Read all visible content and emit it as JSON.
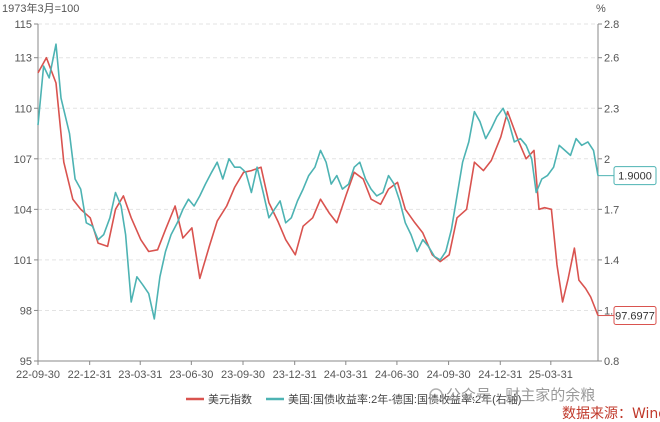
{
  "chart_data": {
    "type": "line",
    "left_unit": "1973年3月=100",
    "right_unit": "%",
    "x_ticks": [
      "22-09-30",
      "22-12-31",
      "23-03-31",
      "23-06-30",
      "23-09-30",
      "23-12-31",
      "24-03-31",
      "24-06-30",
      "24-09-30",
      "24-12-31",
      "25-03-31"
    ],
    "x_range": [
      "2022-09-30",
      "2025-06-23"
    ],
    "y_left": {
      "range": [
        95,
        115
      ],
      "ticks": [
        "95",
        "98",
        "101",
        "104",
        "107",
        "110",
        "113",
        "115"
      ]
    },
    "y_right": {
      "range": [
        0.8,
        2.8
      ],
      "ticks": [
        "0.8",
        "1.1",
        "1.4",
        "1.7",
        "2",
        "2.3",
        "2.6",
        "2.8"
      ]
    },
    "grid": true,
    "legend_position": "bottom",
    "series": [
      {
        "name": "美元指数",
        "axis": "left",
        "color": "#d9534f",
        "end_label": "97.6977",
        "points": [
          [
            "2022-09-30",
            112.1
          ],
          [
            "2022-10-15",
            113.0
          ],
          [
            "2022-11-01",
            111.5
          ],
          [
            "2022-11-15",
            106.8
          ],
          [
            "2022-12-01",
            104.6
          ],
          [
            "2022-12-15",
            104.0
          ],
          [
            "2023-01-01",
            103.5
          ],
          [
            "2023-01-15",
            102.0
          ],
          [
            "2023-02-01",
            101.8
          ],
          [
            "2023-02-15",
            104.0
          ],
          [
            "2023-03-01",
            104.8
          ],
          [
            "2023-03-15",
            103.5
          ],
          [
            "2023-04-01",
            102.2
          ],
          [
            "2023-04-15",
            101.5
          ],
          [
            "2023-05-01",
            101.6
          ],
          [
            "2023-05-15",
            102.8
          ],
          [
            "2023-06-01",
            104.2
          ],
          [
            "2023-06-15",
            102.3
          ],
          [
            "2023-07-01",
            102.9
          ],
          [
            "2023-07-15",
            99.9
          ],
          [
            "2023-08-01",
            101.8
          ],
          [
            "2023-08-15",
            103.3
          ],
          [
            "2023-09-01",
            104.2
          ],
          [
            "2023-09-15",
            105.3
          ],
          [
            "2023-10-01",
            106.2
          ],
          [
            "2023-10-15",
            106.3
          ],
          [
            "2023-11-01",
            106.5
          ],
          [
            "2023-11-15",
            104.4
          ],
          [
            "2023-12-01",
            103.3
          ],
          [
            "2023-12-15",
            102.2
          ],
          [
            "2024-01-01",
            101.3
          ],
          [
            "2024-01-15",
            103.0
          ],
          [
            "2024-02-01",
            103.5
          ],
          [
            "2024-02-15",
            104.6
          ],
          [
            "2024-03-01",
            103.8
          ],
          [
            "2024-03-15",
            103.2
          ],
          [
            "2024-04-01",
            104.9
          ],
          [
            "2024-04-15",
            106.2
          ],
          [
            "2024-05-01",
            105.8
          ],
          [
            "2024-05-15",
            104.6
          ],
          [
            "2024-06-01",
            104.3
          ],
          [
            "2024-06-15",
            105.2
          ],
          [
            "2024-07-01",
            105.6
          ],
          [
            "2024-07-15",
            104.0
          ],
          [
            "2024-08-01",
            103.2
          ],
          [
            "2024-08-15",
            102.6
          ],
          [
            "2024-09-01",
            101.3
          ],
          [
            "2024-09-15",
            100.9
          ],
          [
            "2024-10-01",
            101.3
          ],
          [
            "2024-10-15",
            103.5
          ],
          [
            "2024-11-01",
            104.0
          ],
          [
            "2024-11-15",
            106.8
          ],
          [
            "2024-12-01",
            106.3
          ],
          [
            "2024-12-15",
            106.9
          ],
          [
            "2025-01-01",
            108.3
          ],
          [
            "2025-01-13",
            109.8
          ],
          [
            "2025-02-01",
            108.1
          ],
          [
            "2025-02-15",
            107.0
          ],
          [
            "2025-03-01",
            107.5
          ],
          [
            "2025-03-10",
            104.0
          ],
          [
            "2025-03-20",
            104.1
          ],
          [
            "2025-04-01",
            104.0
          ],
          [
            "2025-04-11",
            100.7
          ],
          [
            "2025-04-21",
            98.5
          ],
          [
            "2025-05-01",
            99.9
          ],
          [
            "2025-05-12",
            101.7
          ],
          [
            "2025-05-20",
            99.8
          ],
          [
            "2025-06-01",
            99.3
          ],
          [
            "2025-06-10",
            98.8
          ],
          [
            "2025-06-23",
            97.6977
          ]
        ]
      },
      {
        "name": "美国:国债收益率:2年-德国:国债收益率:2年(右轴)",
        "axis": "right",
        "color": "#4db3b3",
        "end_label": "1.9000",
        "points": [
          [
            "2022-09-30",
            2.2
          ],
          [
            "2022-10-10",
            2.55
          ],
          [
            "2022-10-20",
            2.48
          ],
          [
            "2022-11-01",
            2.68
          ],
          [
            "2022-11-10",
            2.36
          ],
          [
            "2022-11-25",
            2.15
          ],
          [
            "2022-12-05",
            1.88
          ],
          [
            "2022-12-15",
            1.82
          ],
          [
            "2022-12-25",
            1.62
          ],
          [
            "2023-01-05",
            1.6
          ],
          [
            "2023-01-15",
            1.52
          ],
          [
            "2023-01-25",
            1.55
          ],
          [
            "2023-02-05",
            1.65
          ],
          [
            "2023-02-15",
            1.8
          ],
          [
            "2023-02-25",
            1.72
          ],
          [
            "2023-03-05",
            1.55
          ],
          [
            "2023-03-15",
            1.15
          ],
          [
            "2023-03-25",
            1.3
          ],
          [
            "2023-04-05",
            1.25
          ],
          [
            "2023-04-15",
            1.2
          ],
          [
            "2023-04-25",
            1.05
          ],
          [
            "2023-05-05",
            1.3
          ],
          [
            "2023-05-15",
            1.45
          ],
          [
            "2023-05-25",
            1.55
          ],
          [
            "2023-06-05",
            1.62
          ],
          [
            "2023-06-15",
            1.7
          ],
          [
            "2023-06-25",
            1.76
          ],
          [
            "2023-07-05",
            1.72
          ],
          [
            "2023-07-15",
            1.78
          ],
          [
            "2023-07-25",
            1.85
          ],
          [
            "2023-08-05",
            1.92
          ],
          [
            "2023-08-15",
            1.98
          ],
          [
            "2023-08-25",
            1.88
          ],
          [
            "2023-09-05",
            2.0
          ],
          [
            "2023-09-15",
            1.95
          ],
          [
            "2023-09-25",
            1.95
          ],
          [
            "2023-10-05",
            1.92
          ],
          [
            "2023-10-15",
            1.8
          ],
          [
            "2023-10-25",
            1.95
          ],
          [
            "2023-11-05",
            1.8
          ],
          [
            "2023-11-15",
            1.65
          ],
          [
            "2023-11-25",
            1.7
          ],
          [
            "2023-12-05",
            1.75
          ],
          [
            "2023-12-15",
            1.62
          ],
          [
            "2023-12-25",
            1.65
          ],
          [
            "2024-01-05",
            1.75
          ],
          [
            "2024-01-15",
            1.82
          ],
          [
            "2024-01-25",
            1.9
          ],
          [
            "2024-02-05",
            1.95
          ],
          [
            "2024-02-15",
            2.05
          ],
          [
            "2024-02-25",
            1.98
          ],
          [
            "2024-03-05",
            1.85
          ],
          [
            "2024-03-15",
            1.9
          ],
          [
            "2024-03-25",
            1.82
          ],
          [
            "2024-04-05",
            1.85
          ],
          [
            "2024-04-15",
            1.95
          ],
          [
            "2024-04-25",
            1.98
          ],
          [
            "2024-05-05",
            1.88
          ],
          [
            "2024-05-15",
            1.82
          ],
          [
            "2024-05-25",
            1.78
          ],
          [
            "2024-06-05",
            1.8
          ],
          [
            "2024-06-15",
            1.9
          ],
          [
            "2024-06-25",
            1.85
          ],
          [
            "2024-07-05",
            1.75
          ],
          [
            "2024-07-15",
            1.62
          ],
          [
            "2024-07-25",
            1.55
          ],
          [
            "2024-08-05",
            1.45
          ],
          [
            "2024-08-15",
            1.52
          ],
          [
            "2024-08-25",
            1.48
          ],
          [
            "2024-09-05",
            1.42
          ],
          [
            "2024-09-15",
            1.4
          ],
          [
            "2024-09-25",
            1.45
          ],
          [
            "2024-10-05",
            1.58
          ],
          [
            "2024-10-15",
            1.78
          ],
          [
            "2024-10-25",
            1.98
          ],
          [
            "2024-11-05",
            2.1
          ],
          [
            "2024-11-15",
            2.28
          ],
          [
            "2024-11-25",
            2.22
          ],
          [
            "2024-12-05",
            2.12
          ],
          [
            "2024-12-15",
            2.18
          ],
          [
            "2024-12-25",
            2.25
          ],
          [
            "2025-01-05",
            2.3
          ],
          [
            "2025-01-15",
            2.22
          ],
          [
            "2025-01-25",
            2.1
          ],
          [
            "2025-02-05",
            2.12
          ],
          [
            "2025-02-15",
            2.08
          ],
          [
            "2025-02-25",
            2.0
          ],
          [
            "2025-03-05",
            1.8
          ],
          [
            "2025-03-15",
            1.88
          ],
          [
            "2025-03-25",
            1.9
          ],
          [
            "2025-04-05",
            1.95
          ],
          [
            "2025-04-15",
            2.08
          ],
          [
            "2025-04-25",
            2.05
          ],
          [
            "2025-05-05",
            2.02
          ],
          [
            "2025-05-15",
            2.12
          ],
          [
            "2025-05-25",
            2.08
          ],
          [
            "2025-06-05",
            2.1
          ],
          [
            "2025-06-15",
            2.05
          ],
          [
            "2025-06-23",
            1.9
          ]
        ]
      }
    ]
  },
  "watermark": "公众号 · 财主家的余粮",
  "source": "数据来源：Wind",
  "colors": {
    "accent_red": "#d9534f",
    "accent_teal": "#4db3b3",
    "source_red": "#c0392b",
    "grid": "#e3e3e3"
  }
}
